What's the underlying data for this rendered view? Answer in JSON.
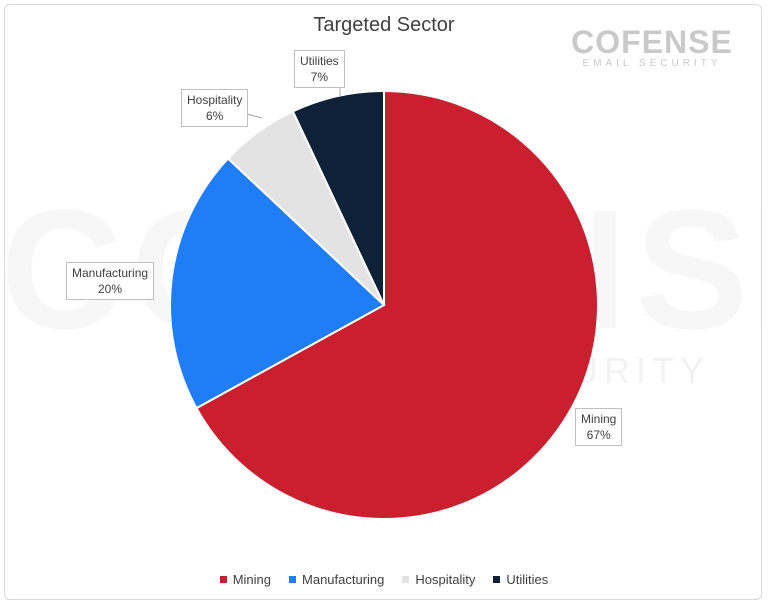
{
  "chart_data": {
    "type": "pie",
    "title": "Targeted Sector",
    "categories": [
      "Mining",
      "Manufacturing",
      "Hospitality",
      "Utilities"
    ],
    "values": [
      67,
      20,
      6,
      7
    ],
    "labels": [
      "67%",
      "20%",
      "6%",
      "7%"
    ],
    "colors": [
      "#c91f2e",
      "#1f7ef7",
      "#e3e3e3",
      "#0e2136"
    ],
    "legend_position": "bottom"
  },
  "brand": {
    "name": "COFENSE",
    "tagline": "EMAIL SECURITY",
    "watermark_main": "COFENSE",
    "watermark_sub": "SECURITY"
  }
}
